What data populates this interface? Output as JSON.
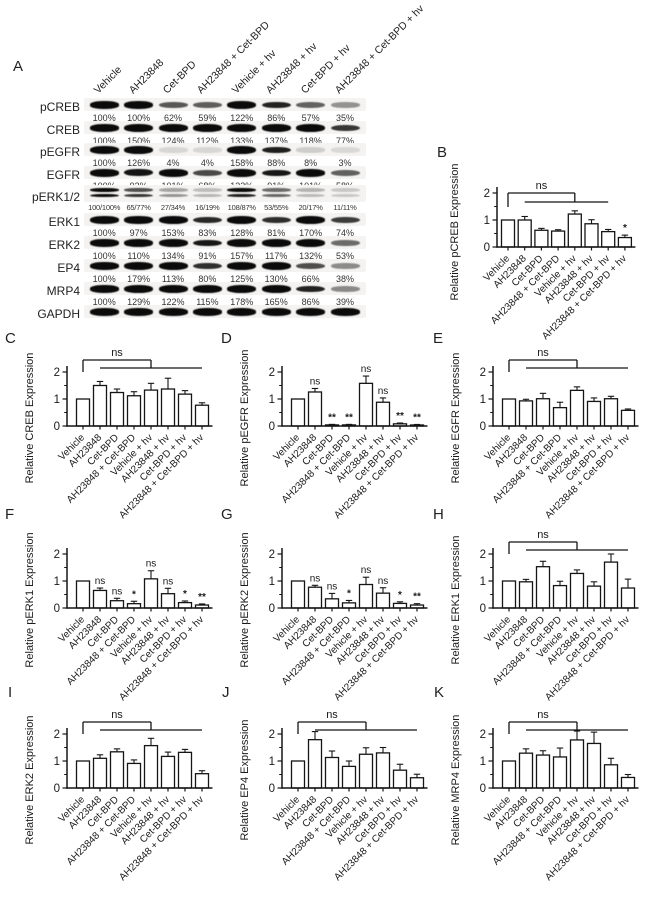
{
  "panel_a": {
    "letter": "A",
    "lane_labels": [
      "Vehicle",
      "AH23848",
      "Cet-BPD",
      "AH23848 + Cet-BPD",
      "Vehicle + hv",
      "AH23848 + hv",
      "Cet-BPD + hv",
      "AH23848 + Cet-BPD + hv"
    ],
    "rows": [
      {
        "protein": "pCREB",
        "percentages": [
          "100%",
          "100%",
          "62%",
          "59%",
          "122%",
          "86%",
          "57%",
          "35%"
        ],
        "bands": [
          [
            100
          ],
          [
            100
          ],
          [
            62
          ],
          [
            59
          ],
          [
            122
          ],
          [
            86
          ],
          [
            57
          ],
          [
            35
          ]
        ]
      },
      {
        "protein": "CREB",
        "percentages": [
          "100%",
          "150%",
          "124%",
          "112%",
          "133%",
          "137%",
          "118%",
          "77%"
        ],
        "bands": [
          [
            100
          ],
          [
            150
          ],
          [
            124
          ],
          [
            112
          ],
          [
            133
          ],
          [
            137
          ],
          [
            118
          ],
          [
            77
          ]
        ]
      },
      {
        "protein": "pEGFR",
        "percentages": [
          "100%",
          "126%",
          "4%",
          "4%",
          "158%",
          "88%",
          "8%",
          "3%"
        ],
        "bands": [
          [
            100
          ],
          [
            126
          ],
          [
            4
          ],
          [
            4
          ],
          [
            158
          ],
          [
            88
          ],
          [
            8
          ],
          [
            3
          ]
        ]
      },
      {
        "protein": "EGFR",
        "percentages": [
          "100%",
          "93%",
          "101%",
          "68%",
          "132%",
          "91%",
          "101%",
          "58%"
        ],
        "bands": [
          [
            100
          ],
          [
            93
          ],
          [
            101
          ],
          [
            68
          ],
          [
            132
          ],
          [
            91
          ],
          [
            101
          ],
          [
            58
          ]
        ]
      },
      {
        "protein": "pERK1/2",
        "percentages": [
          "100/100%",
          "65/77%",
          "27/34%",
          "16/19%",
          "108/87%",
          "53/55%",
          "20/17%",
          "11/11%"
        ],
        "bands": [
          [
            100,
            100
          ],
          [
            65,
            77
          ],
          [
            27,
            34
          ],
          [
            16,
            19
          ],
          [
            108,
            87
          ],
          [
            53,
            55
          ],
          [
            20,
            17
          ],
          [
            11,
            11
          ]
        ]
      },
      {
        "protein": "ERK1",
        "percentages": [
          "100%",
          "97%",
          "153%",
          "83%",
          "128%",
          "81%",
          "170%",
          "74%"
        ],
        "bands": [
          [
            100
          ],
          [
            97
          ],
          [
            153
          ],
          [
            83
          ],
          [
            128
          ],
          [
            81
          ],
          [
            170
          ],
          [
            74
          ]
        ]
      },
      {
        "protein": "ERK2",
        "percentages": [
          "100%",
          "110%",
          "134%",
          "91%",
          "157%",
          "117%",
          "132%",
          "53%"
        ],
        "bands": [
          [
            100
          ],
          [
            110
          ],
          [
            134
          ],
          [
            91
          ],
          [
            157
          ],
          [
            117
          ],
          [
            132
          ],
          [
            53
          ]
        ]
      },
      {
        "protein": "EP4",
        "percentages": [
          "100%",
          "179%",
          "113%",
          "80%",
          "125%",
          "130%",
          "66%",
          "38%"
        ],
        "bands": [
          [
            100
          ],
          [
            179
          ],
          [
            113
          ],
          [
            80
          ],
          [
            125
          ],
          [
            130
          ],
          [
            66
          ],
          [
            38
          ]
        ]
      },
      {
        "protein": "MRP4",
        "percentages": [
          "100%",
          "129%",
          "122%",
          "115%",
          "178%",
          "165%",
          "86%",
          "39%"
        ],
        "bands": [
          [
            100
          ],
          [
            129
          ],
          [
            122
          ],
          [
            115
          ],
          [
            178
          ],
          [
            165
          ],
          [
            86
          ],
          [
            39
          ]
        ]
      },
      {
        "protein": "GAPDH",
        "percentages": [],
        "bands": [
          [
            100
          ],
          [
            100
          ],
          [
            100
          ],
          [
            100
          ],
          [
            100
          ],
          [
            100
          ],
          [
            100
          ],
          [
            100
          ]
        ]
      }
    ]
  },
  "chart_data": {
    "type": "bar",
    "categories": [
      "Vehicle",
      "AH23848",
      "Cet-BPD",
      "AH23848 + Cet-BPD",
      "Vehicle + hv",
      "AH23848 + hv",
      "Cet-BPD + hv",
      "AH23848 + Cet-BPD + hv"
    ],
    "ylim": [
      0,
      2
    ],
    "yticks": [
      0,
      1,
      2
    ],
    "bar_fill": "#ffffff",
    "bar_stroke": "#151515",
    "charts": [
      {
        "panel": "B",
        "ylabel": "Relative pCREB Expression",
        "values": [
          1.0,
          1.0,
          0.62,
          0.59,
          1.22,
          0.86,
          0.57,
          0.35
        ],
        "errors": [
          0,
          0.13,
          0.07,
          0.05,
          0.12,
          0.15,
          0.08,
          0.09
        ],
        "sig": [
          "",
          "",
          "",
          "",
          "",
          "",
          "",
          "*"
        ],
        "ns_bracket": true,
        "ns_label": "ns"
      },
      {
        "panel": "C",
        "ylabel": "Relative CREB Expression",
        "values": [
          1.0,
          1.5,
          1.24,
          1.12,
          1.33,
          1.37,
          1.18,
          0.77
        ],
        "errors": [
          0,
          0.15,
          0.13,
          0.15,
          0.25,
          0.4,
          0.13,
          0.09
        ],
        "sig": [
          "",
          "",
          "",
          "",
          "",
          "",
          "",
          ""
        ],
        "ns_bracket": true,
        "ns_label": "ns"
      },
      {
        "panel": "D",
        "ylabel": "Relative pEGFR Expression",
        "values": [
          1.0,
          1.26,
          0.04,
          0.04,
          1.58,
          0.88,
          0.08,
          0.03
        ],
        "errors": [
          0,
          0.13,
          0.02,
          0.02,
          0.27,
          0.16,
          0.03,
          0.02
        ],
        "sig": [
          "",
          "ns",
          "**",
          "**",
          "ns",
          "ns",
          "**",
          "**"
        ],
        "ns_bracket": false,
        "ns_label": ""
      },
      {
        "panel": "E",
        "ylabel": "Relative EGFR Expression",
        "values": [
          1.0,
          0.93,
          1.01,
          0.68,
          1.32,
          0.91,
          1.01,
          0.58
        ],
        "errors": [
          0,
          0.06,
          0.2,
          0.2,
          0.13,
          0.13,
          0.09,
          0.05
        ],
        "sig": [
          "",
          "",
          "",
          "",
          "",
          "",
          "",
          ""
        ],
        "ns_bracket": true,
        "ns_label": "ns"
      },
      {
        "panel": "F",
        "ylabel": "Relative pERK1 Expression",
        "values": [
          1.0,
          0.65,
          0.27,
          0.16,
          1.08,
          0.53,
          0.2,
          0.11
        ],
        "errors": [
          0,
          0.09,
          0.09,
          0.09,
          0.3,
          0.2,
          0.06,
          0.04
        ],
        "sig": [
          "",
          "ns",
          "ns",
          "*",
          "ns",
          "ns",
          "*",
          "**"
        ],
        "ns_bracket": false,
        "ns_label": ""
      },
      {
        "panel": "G",
        "ylabel": "Relative pERK2 Expression",
        "values": [
          1.0,
          0.77,
          0.34,
          0.19,
          0.87,
          0.55,
          0.17,
          0.11
        ],
        "errors": [
          0,
          0.07,
          0.2,
          0.09,
          0.27,
          0.2,
          0.06,
          0.05
        ],
        "sig": [
          "",
          "ns",
          "ns",
          "*",
          "ns",
          "ns",
          "*",
          "**"
        ],
        "ns_bracket": false,
        "ns_label": ""
      },
      {
        "panel": "H",
        "ylabel": "Relative ERK1 Expression",
        "values": [
          1.0,
          0.97,
          1.53,
          0.83,
          1.28,
          0.81,
          1.7,
          0.74
        ],
        "errors": [
          0,
          0.09,
          0.2,
          0.16,
          0.13,
          0.16,
          0.3,
          0.33
        ],
        "sig": [
          "",
          "",
          "",
          "",
          "",
          "",
          "",
          ""
        ],
        "ns_bracket": true,
        "ns_label": "ns"
      },
      {
        "panel": "I",
        "ylabel": "Relative ERK2 Expression",
        "values": [
          1.0,
          1.1,
          1.34,
          0.91,
          1.57,
          1.17,
          1.32,
          0.53
        ],
        "errors": [
          0,
          0.13,
          0.11,
          0.13,
          0.27,
          0.16,
          0.11,
          0.11
        ],
        "sig": [
          "",
          "",
          "",
          "",
          "",
          "",
          "",
          ""
        ],
        "ns_bracket": true,
        "ns_label": "ns"
      },
      {
        "panel": "J",
        "ylabel": "Relative EP4 Expression",
        "values": [
          1.0,
          1.79,
          1.13,
          0.8,
          1.25,
          1.3,
          0.66,
          0.38
        ],
        "errors": [
          0,
          0.3,
          0.24,
          0.2,
          0.24,
          0.2,
          0.22,
          0.13
        ],
        "sig": [
          "",
          "",
          "",
          "",
          "",
          "",
          "",
          ""
        ],
        "ns_bracket": true,
        "ns_label": "ns"
      },
      {
        "panel": "K",
        "ylabel": "Relative MRP4 Expression",
        "values": [
          1.0,
          1.29,
          1.22,
          1.15,
          1.78,
          1.65,
          0.86,
          0.39
        ],
        "errors": [
          0,
          0.16,
          0.16,
          0.33,
          0.33,
          0.42,
          0.24,
          0.11
        ],
        "sig": [
          "",
          "",
          "",
          "",
          "",
          "",
          "",
          ""
        ],
        "ns_bracket": true,
        "ns_label": "ns"
      }
    ]
  }
}
